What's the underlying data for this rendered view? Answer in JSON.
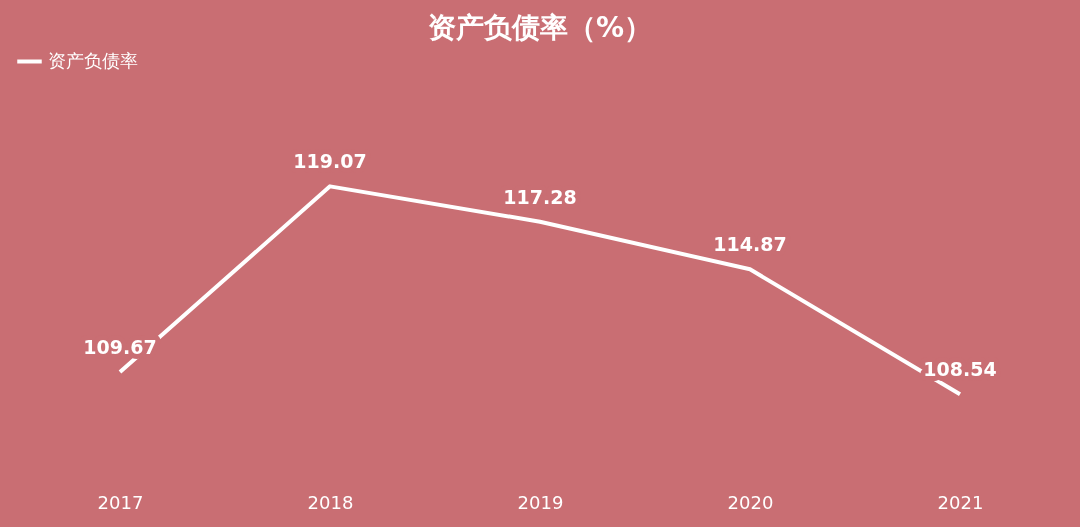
{
  "chart_data": {
    "type": "line",
    "title": "资产负债率（%）",
    "categories": [
      "2017",
      "2018",
      "2019",
      "2020",
      "2021"
    ],
    "series": [
      {
        "name": "资产负债率",
        "color": "#ffffff",
        "values": [
          109.67,
          119.07,
          117.28,
          114.87,
          108.54
        ]
      }
    ],
    "data_labels": true,
    "legend": "top",
    "grid": false,
    "marker": "none",
    "line_style": "solid"
  }
}
